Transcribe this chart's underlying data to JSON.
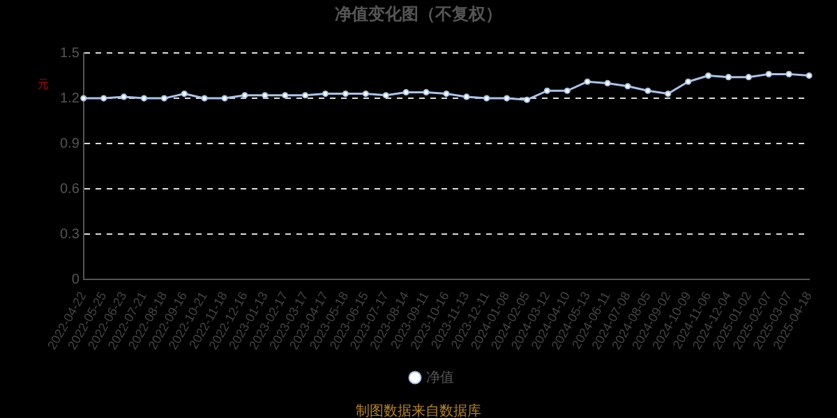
{
  "chart_data": {
    "type": "line",
    "title": "净值变化图（不复权）",
    "ylabel": "元",
    "categories": [
      "2022-04-22",
      "2022-05-25",
      "2022-06-23",
      "2022-07-21",
      "2022-08-18",
      "2022-09-16",
      "2022-10-21",
      "2022-11-18",
      "2022-12-16",
      "2023-01-13",
      "2023-02-17",
      "2023-03-17",
      "2023-04-17",
      "2023-05-18",
      "2023-06-15",
      "2023-07-17",
      "2023-08-14",
      "2023-09-11",
      "2023-10-16",
      "2023-11-13",
      "2023-12-11",
      "2024-01-08",
      "2024-02-05",
      "2024-03-12",
      "2024-04-10",
      "2024-05-13",
      "2024-06-11",
      "2024-07-08",
      "2024-08-05",
      "2024-09-02",
      "2024-10-09",
      "2024-11-06",
      "2024-12-04",
      "2025-01-02",
      "2025-02-07",
      "2025-03-07",
      "2025-04-18"
    ],
    "series": [
      {
        "name": "净值",
        "color": "#a8c4ec",
        "values": [
          1.2,
          1.2,
          1.21,
          1.2,
          1.2,
          1.23,
          1.2,
          1.2,
          1.22,
          1.22,
          1.22,
          1.22,
          1.23,
          1.23,
          1.23,
          1.22,
          1.24,
          1.24,
          1.23,
          1.21,
          1.2,
          1.2,
          1.19,
          1.25,
          1.25,
          1.31,
          1.3,
          1.28,
          1.25,
          1.23,
          1.31,
          1.35,
          1.34,
          1.34,
          1.36,
          1.36,
          1.35
        ]
      }
    ],
    "ylim": [
      0,
      1.5
    ],
    "yticks": [
      0,
      0.3,
      0.6,
      0.9,
      1.2,
      1.5
    ],
    "grid": "y",
    "legend": "bottom",
    "marker": "circle",
    "line_style": "solid",
    "annotations": [
      "制图数据来自数据库"
    ]
  }
}
